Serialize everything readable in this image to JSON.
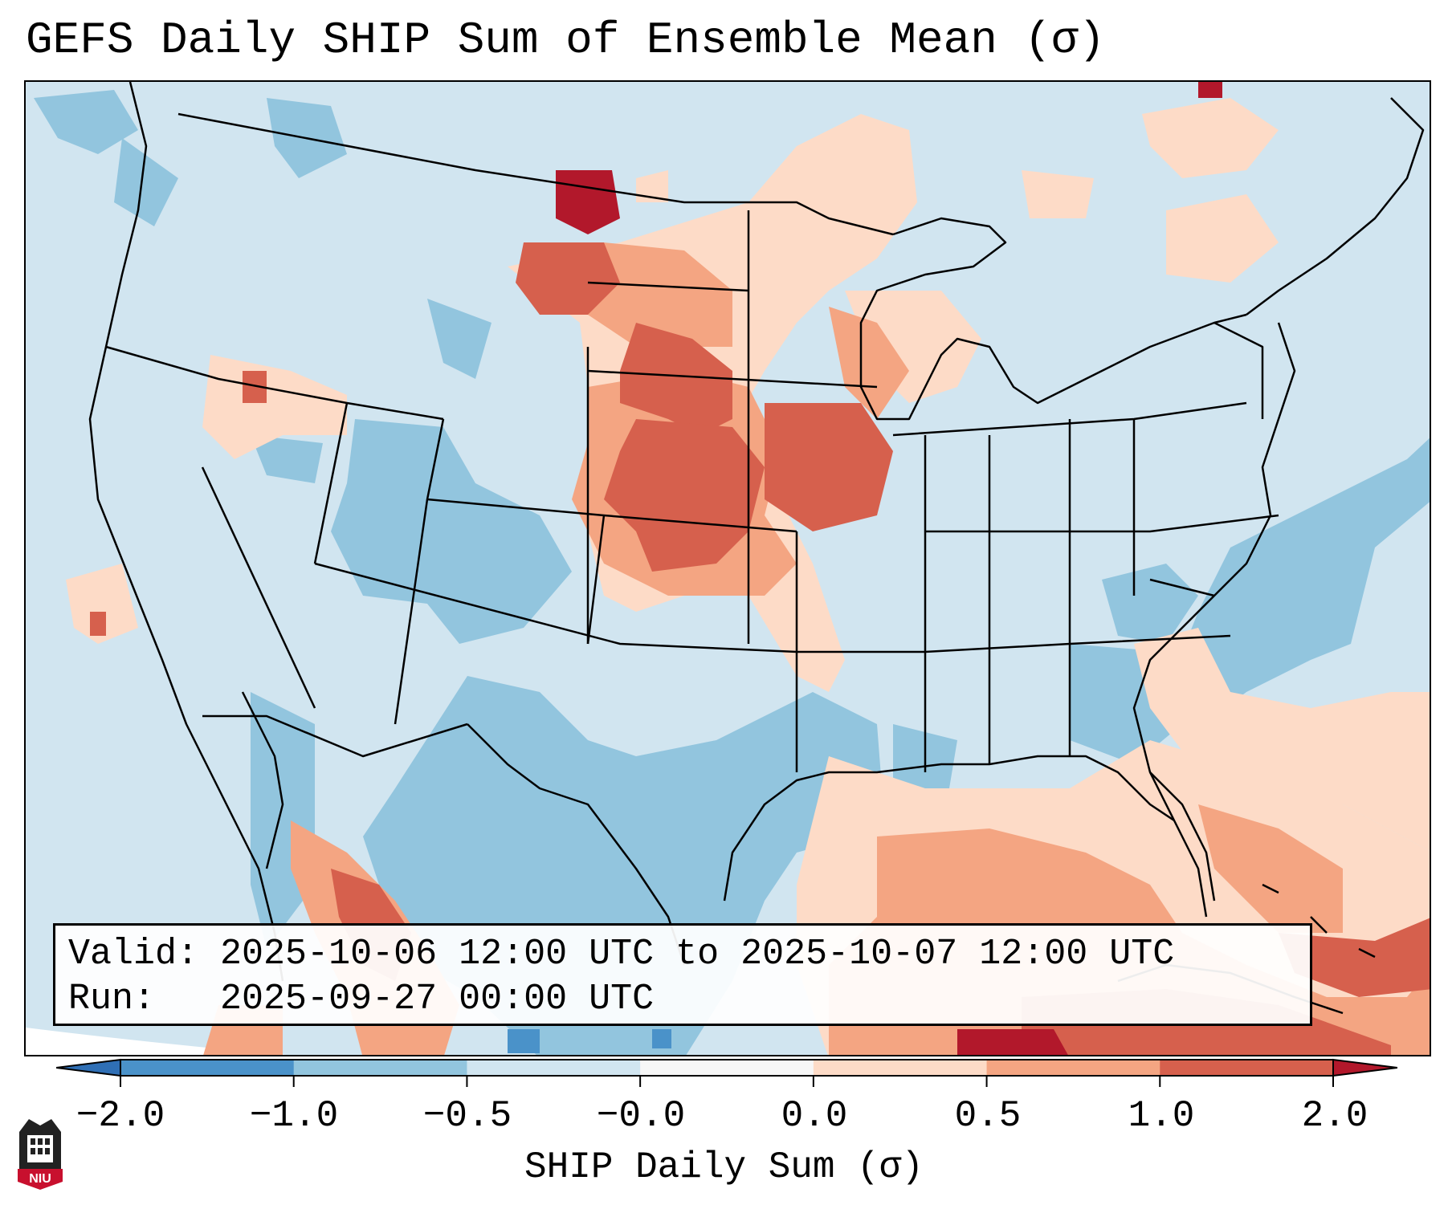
{
  "title": "GEFS Daily SHIP Sum of Ensemble Mean (σ)",
  "info_box": {
    "valid_label": "Valid:",
    "valid_value": "2025-10-06 12:00 UTC to 2025-10-07 12:00 UTC",
    "run_label": "Run:",
    "run_value": "2025-09-27 00:00 UTC"
  },
  "colorbar": {
    "label": "SHIP Daily Sum (σ)",
    "ticks": [
      "−2.0",
      "−1.0",
      "−0.5",
      "−0.0",
      "0.0",
      "0.5",
      "1.0",
      "2.0"
    ],
    "bins": [
      {
        "range": "< -2.0",
        "color": "#2f6fb5"
      },
      {
        "range": "-2.0 to -1.0",
        "color": "#4a92c9"
      },
      {
        "range": "-1.0 to -0.5",
        "color": "#92c5de"
      },
      {
        "range": "-0.5 to -0.0",
        "color": "#d1e5f0"
      },
      {
        "range": "-0.0 to 0.0",
        "color": "#f7f7f7"
      },
      {
        "range": "0.0 to 0.5",
        "color": "#fddbc7"
      },
      {
        "range": "0.5 to 1.0",
        "color": "#f4a582"
      },
      {
        "range": "1.0 to 2.0",
        "color": "#d6604d"
      },
      {
        "range": "> 2.0",
        "color": "#b2182b"
      }
    ]
  },
  "logo": {
    "text": "NIU",
    "color": "#c8102e"
  }
}
